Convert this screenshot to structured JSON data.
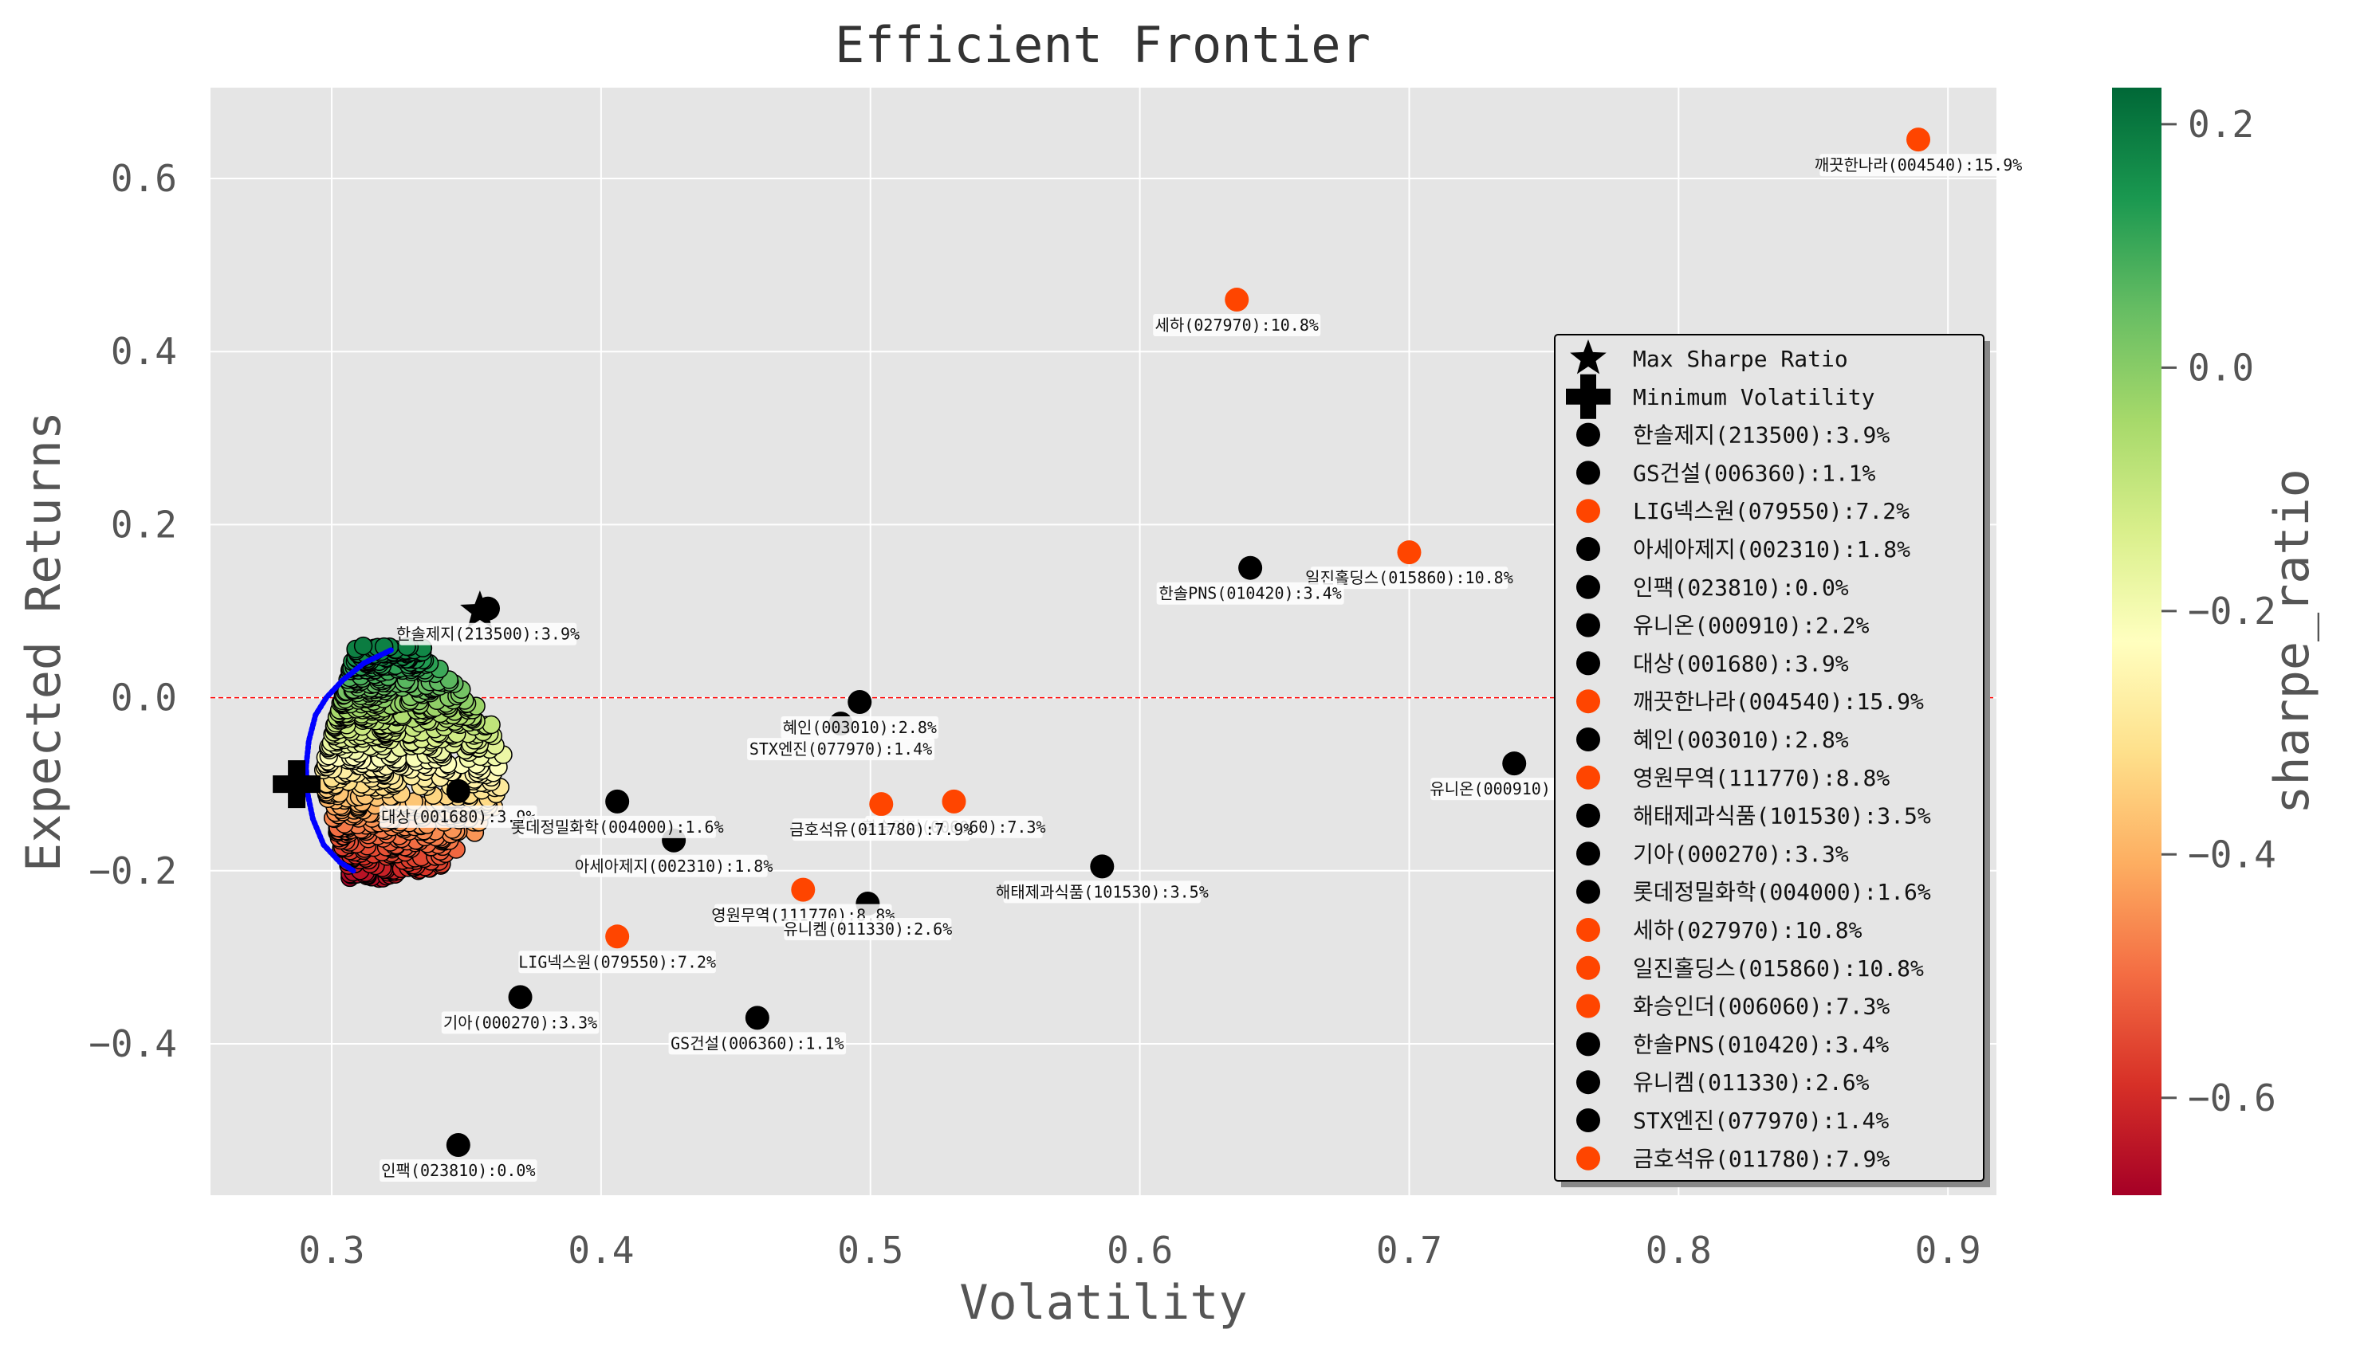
{
  "chart_data": {
    "type": "scatter",
    "title": "Efficient Frontier",
    "xlabel": "Volatility",
    "ylabel": "Expected Returns",
    "xlim": [
      0.255,
      0.918
    ],
    "ylim": [
      -0.575,
      0.705
    ],
    "xticks": [
      0.3,
      0.4,
      0.5,
      0.6,
      0.7,
      0.8,
      0.9
    ],
    "xtick_labels": [
      "0.3",
      "0.4",
      "0.5",
      "0.6",
      "0.7",
      "0.8",
      "0.9"
    ],
    "yticks": [
      -0.4,
      -0.2,
      0.0,
      0.2,
      0.4,
      0.6
    ],
    "ytick_labels": [
      "−0.4",
      "−0.2",
      "0.0",
      "0.2",
      "0.4",
      "0.6"
    ],
    "grid": true,
    "zero_line": {
      "y": 0.0,
      "color": "#ff0000",
      "style": "dashed"
    },
    "colorbar": {
      "label": "sharpe_ratio",
      "colormap": "RdYlGn",
      "range": [
        -0.68,
        0.23
      ],
      "ticks": [
        0.2,
        0.0,
        -0.2,
        -0.4,
        -0.6
      ],
      "tick_labels": [
        "0.2",
        "0.0",
        "−0.2",
        "−0.4",
        "−0.6"
      ]
    },
    "portfolio_cloud": {
      "description_series": "simulated portfolios colored by sharpe_ratio",
      "x_range": [
        0.292,
        0.37
      ],
      "y_range": [
        -0.21,
        0.06
      ]
    },
    "frontier_line": {
      "color": "#0000ff",
      "x": [
        0.322,
        0.312,
        0.304,
        0.298,
        0.294,
        0.2915,
        0.2905,
        0.291,
        0.293,
        0.297,
        0.303,
        0.308
      ],
      "y": [
        0.055,
        0.04,
        0.02,
        0.0,
        -0.02,
        -0.05,
        -0.08,
        -0.11,
        -0.14,
        -0.17,
        -0.19,
        -0.2
      ]
    },
    "max_sharpe": {
      "x": 0.355,
      "y": 0.1
    },
    "min_volatility": {
      "x": 0.287,
      "y": -0.1
    },
    "stocks": [
      {
        "label": "한솔제지(213500):3.9%",
        "x": 0.358,
        "y": 0.103,
        "color": "#000000"
      },
      {
        "label": "GS건설(006360):1.1%",
        "x": 0.458,
        "y": -0.37,
        "color": "#000000"
      },
      {
        "label": "LIG넥스원(079550):7.2%",
        "x": 0.406,
        "y": -0.276,
        "color": "#ff4500"
      },
      {
        "label": "아세아제지(002310):1.8%",
        "x": 0.427,
        "y": -0.165,
        "color": "#000000"
      },
      {
        "label": "인팩(023810):0.0%",
        "x": 0.347,
        "y": -0.517,
        "color": "#000000"
      },
      {
        "label": "유니온(000910):2.2%",
        "x": 0.739,
        "y": -0.076,
        "color": "#000000"
      },
      {
        "label": "대상(001680):3.9%",
        "x": 0.347,
        "y": -0.108,
        "color": "#000000"
      },
      {
        "label": "깨끗한나라(004540):15.9%",
        "x": 0.889,
        "y": 0.645,
        "color": "#ff4500"
      },
      {
        "label": "혜인(003010):2.8%",
        "x": 0.496,
        "y": -0.005,
        "color": "#000000"
      },
      {
        "label": "영원무역(111770):8.8%",
        "x": 0.475,
        "y": -0.222,
        "color": "#ff4500"
      },
      {
        "label": "해태제과식품(101530):3.5%",
        "x": 0.586,
        "y": -0.195,
        "color": "#000000"
      },
      {
        "label": "기아(000270):3.3%",
        "x": 0.37,
        "y": -0.346,
        "color": "#000000"
      },
      {
        "label": "롯데정밀화학(004000):1.6%",
        "x": 0.406,
        "y": -0.12,
        "color": "#000000"
      },
      {
        "label": "세하(027970):10.8%",
        "x": 0.636,
        "y": 0.46,
        "color": "#ff4500"
      },
      {
        "label": "일진홀딩스(015860):10.8%",
        "x": 0.7,
        "y": 0.168,
        "color": "#ff4500"
      },
      {
        "label": "화승인더(006060):7.3%",
        "x": 0.531,
        "y": -0.12,
        "color": "#ff4500"
      },
      {
        "label": "한솔PNS(010420):3.4%",
        "x": 0.641,
        "y": 0.15,
        "color": "#000000"
      },
      {
        "label": "유니켐(011330):2.6%",
        "x": 0.499,
        "y": -0.238,
        "color": "#000000"
      },
      {
        "label": "STX엔진(077970):1.4%",
        "x": 0.489,
        "y": -0.03,
        "color": "#000000"
      },
      {
        "label": "금호석유(011780):7.9%",
        "x": 0.504,
        "y": -0.123,
        "color": "#ff4500"
      }
    ],
    "legend": {
      "placement": "center-right",
      "entries": [
        {
          "label": "Max Sharpe Ratio",
          "marker": "star",
          "color": "#000000"
        },
        {
          "label": "Minimum Volatility",
          "marker": "plus",
          "color": "#000000"
        },
        {
          "label": "한솔제지(213500):3.9%",
          "marker": "circle",
          "color": "#000000"
        },
        {
          "label": "GS건설(006360):1.1%",
          "marker": "circle",
          "color": "#000000"
        },
        {
          "label": "LIG넥스원(079550):7.2%",
          "marker": "circle",
          "color": "#ff4500"
        },
        {
          "label": "아세아제지(002310):1.8%",
          "marker": "circle",
          "color": "#000000"
        },
        {
          "label": "인팩(023810):0.0%",
          "marker": "circle",
          "color": "#000000"
        },
        {
          "label": "유니온(000910):2.2%",
          "marker": "circle",
          "color": "#000000"
        },
        {
          "label": "대상(001680):3.9%",
          "marker": "circle",
          "color": "#000000"
        },
        {
          "label": "깨끗한나라(004540):15.9%",
          "marker": "circle",
          "color": "#ff4500"
        },
        {
          "label": "혜인(003010):2.8%",
          "marker": "circle",
          "color": "#000000"
        },
        {
          "label": "영원무역(111770):8.8%",
          "marker": "circle",
          "color": "#ff4500"
        },
        {
          "label": "해태제과식품(101530):3.5%",
          "marker": "circle",
          "color": "#000000"
        },
        {
          "label": "기아(000270):3.3%",
          "marker": "circle",
          "color": "#000000"
        },
        {
          "label": "롯데정밀화학(004000):1.6%",
          "marker": "circle",
          "color": "#000000"
        },
        {
          "label": "세하(027970):10.8%",
          "marker": "circle",
          "color": "#ff4500"
        },
        {
          "label": "일진홀딩스(015860):10.8%",
          "marker": "circle",
          "color": "#ff4500"
        },
        {
          "label": "화승인더(006060):7.3%",
          "marker": "circle",
          "color": "#ff4500"
        },
        {
          "label": "한솔PNS(010420):3.4%",
          "marker": "circle",
          "color": "#000000"
        },
        {
          "label": "유니켐(011330):2.6%",
          "marker": "circle",
          "color": "#000000"
        },
        {
          "label": "STX엔진(077970):1.4%",
          "marker": "circle",
          "color": "#000000"
        },
        {
          "label": "금호석유(011780):7.9%",
          "marker": "circle",
          "color": "#ff4500"
        }
      ]
    }
  }
}
